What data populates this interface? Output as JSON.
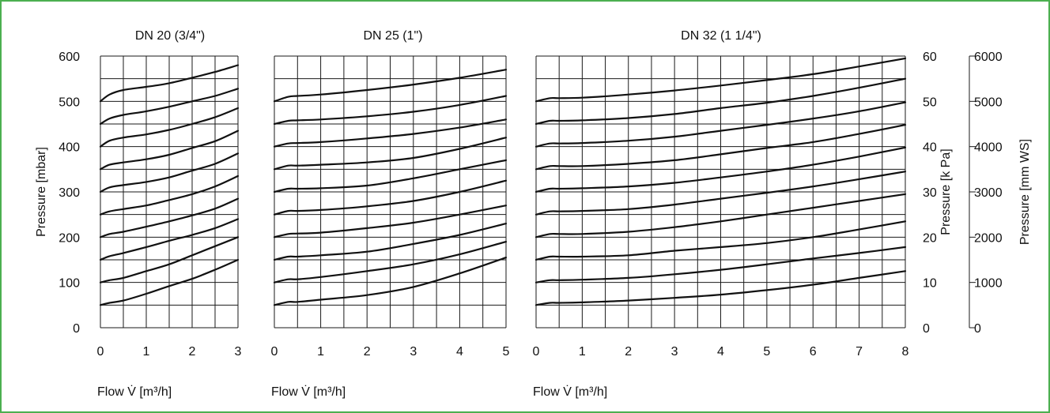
{
  "chart_data": [
    {
      "type": "line",
      "title": "DN 20 (3/4\")",
      "xlabel": "Flow V̇ [m³/h]",
      "ylabel": "Pressure [mbar]",
      "xlim": [
        0,
        3
      ],
      "ylim": [
        0,
        600
      ],
      "x_ticks": [
        "0",
        "1",
        "2",
        "3"
      ],
      "y_ticks": [
        "0",
        "100",
        "200",
        "300",
        "400",
        "500",
        "600"
      ],
      "grid": true,
      "series": [
        {
          "x": [
            0,
            0.2,
            0.5,
            1,
            1.5,
            2,
            2.5,
            3
          ],
          "values": [
            50,
            55,
            60,
            75,
            92,
            108,
            128,
            150
          ]
        },
        {
          "x": [
            0,
            0.2,
            0.5,
            1,
            1.5,
            2,
            2.5,
            3
          ],
          "values": [
            100,
            105,
            110,
            125,
            140,
            160,
            180,
            200
          ]
        },
        {
          "x": [
            0,
            0.2,
            0.5,
            1,
            1.5,
            2,
            2.5,
            3
          ],
          "values": [
            150,
            158,
            165,
            178,
            192,
            205,
            220,
            240
          ]
        },
        {
          "x": [
            0,
            0.2,
            0.5,
            1,
            1.5,
            2,
            2.5,
            3
          ],
          "values": [
            200,
            207,
            212,
            223,
            235,
            248,
            263,
            285
          ]
        },
        {
          "x": [
            0,
            0.2,
            0.5,
            1,
            1.5,
            2,
            2.5,
            3
          ],
          "values": [
            250,
            257,
            262,
            270,
            282,
            295,
            312,
            335
          ]
        },
        {
          "x": [
            0,
            0.2,
            0.5,
            1,
            1.5,
            2,
            2.5,
            3
          ],
          "values": [
            300,
            310,
            315,
            322,
            332,
            347,
            362,
            385
          ]
        },
        {
          "x": [
            0,
            0.2,
            0.5,
            1,
            1.5,
            2,
            2.5,
            3
          ],
          "values": [
            350,
            360,
            365,
            372,
            382,
            397,
            412,
            435
          ]
        },
        {
          "x": [
            0,
            0.2,
            0.5,
            1,
            1.5,
            2,
            2.5,
            3
          ],
          "values": [
            400,
            413,
            420,
            427,
            437,
            450,
            465,
            485
          ]
        },
        {
          "x": [
            0,
            0.2,
            0.5,
            1,
            1.5,
            2,
            2.5,
            3
          ],
          "values": [
            450,
            462,
            470,
            478,
            488,
            500,
            512,
            528
          ]
        },
        {
          "x": [
            0,
            0.2,
            0.5,
            1,
            1.5,
            2,
            2.5,
            3
          ],
          "values": [
            500,
            515,
            525,
            532,
            540,
            552,
            565,
            580
          ]
        }
      ]
    },
    {
      "type": "line",
      "title": "DN 25 (1\")",
      "xlabel": "Flow V̇ [m³/h]",
      "xlim": [
        0,
        5
      ],
      "ylim": [
        0,
        600
      ],
      "x_ticks": [
        "0",
        "1",
        "2",
        "3",
        "4",
        "5"
      ],
      "grid": true,
      "series": [
        {
          "x": [
            0,
            0.3,
            0.5,
            1,
            2,
            3,
            4,
            5
          ],
          "values": [
            50,
            57,
            57,
            62,
            72,
            90,
            120,
            155
          ]
        },
        {
          "x": [
            0,
            0.3,
            0.5,
            1,
            2,
            3,
            4,
            5
          ],
          "values": [
            100,
            107,
            107,
            112,
            125,
            140,
            162,
            190
          ]
        },
        {
          "x": [
            0,
            0.3,
            0.5,
            1,
            2,
            3,
            4,
            5
          ],
          "values": [
            150,
            157,
            157,
            160,
            168,
            185,
            205,
            230
          ]
        },
        {
          "x": [
            0,
            0.3,
            0.5,
            1,
            2,
            3,
            4,
            5
          ],
          "values": [
            200,
            207,
            208,
            210,
            220,
            232,
            250,
            270
          ]
        },
        {
          "x": [
            0,
            0.3,
            0.5,
            1,
            2,
            3,
            4,
            5
          ],
          "values": [
            250,
            258,
            258,
            260,
            268,
            280,
            300,
            325
          ]
        },
        {
          "x": [
            0,
            0.3,
            0.5,
            1,
            2,
            3,
            4,
            5
          ],
          "values": [
            300,
            307,
            307,
            308,
            314,
            330,
            350,
            370
          ]
        },
        {
          "x": [
            0,
            0.3,
            0.5,
            1,
            2,
            3,
            4,
            5
          ],
          "values": [
            350,
            358,
            358,
            360,
            365,
            375,
            395,
            420
          ]
        },
        {
          "x": [
            0,
            0.3,
            0.5,
            1,
            2,
            3,
            4,
            5
          ],
          "values": [
            400,
            407,
            408,
            410,
            418,
            428,
            442,
            460
          ]
        },
        {
          "x": [
            0,
            0.3,
            0.5,
            1,
            2,
            3,
            4,
            5
          ],
          "values": [
            450,
            457,
            458,
            460,
            467,
            477,
            492,
            512
          ]
        },
        {
          "x": [
            0,
            0.3,
            0.5,
            1,
            2,
            3,
            4,
            5
          ],
          "values": [
            500,
            510,
            512,
            515,
            525,
            537,
            552,
            570
          ]
        }
      ]
    },
    {
      "type": "line",
      "title": "DN 32 (1 1/4\")",
      "xlabel": "Flow V̇ [m³/h]",
      "ylabel_right_1": "Pressure [k Pa]",
      "ylabel_right_2": "Pressure [mm WS]",
      "xlim": [
        0,
        8
      ],
      "ylim": [
        0,
        600
      ],
      "x_ticks": [
        "0",
        "1",
        "2",
        "3",
        "4",
        "5",
        "6",
        "7",
        "8"
      ],
      "y_ticks_kpa": [
        "0",
        "10",
        "20",
        "30",
        "40",
        "50",
        "60"
      ],
      "y_ticks_mmws": [
        "0",
        "1000",
        "2000",
        "3000",
        "4000",
        "5000",
        "6000"
      ],
      "grid": true,
      "series": [
        {
          "x": [
            0,
            0.3,
            0.5,
            1,
            2,
            3,
            4,
            5,
            6,
            7,
            8
          ],
          "values": [
            50,
            55,
            55,
            56,
            60,
            66,
            73,
            83,
            95,
            110,
            125
          ]
        },
        {
          "x": [
            0,
            0.3,
            0.5,
            1,
            2,
            3,
            4,
            5,
            6,
            7,
            8
          ],
          "values": [
            100,
            105,
            105,
            106,
            110,
            118,
            128,
            140,
            153,
            165,
            178
          ]
        },
        {
          "x": [
            0,
            0.3,
            0.5,
            1,
            2,
            3,
            4,
            5,
            6,
            7,
            8
          ],
          "values": [
            150,
            157,
            157,
            157,
            160,
            170,
            178,
            187,
            200,
            217,
            235
          ]
        },
        {
          "x": [
            0,
            0.3,
            0.5,
            1,
            2,
            3,
            4,
            5,
            6,
            7,
            8
          ],
          "values": [
            200,
            207,
            207,
            207,
            212,
            222,
            235,
            250,
            265,
            280,
            295
          ]
        },
        {
          "x": [
            0,
            0.3,
            0.5,
            1,
            2,
            3,
            4,
            5,
            6,
            7,
            8
          ],
          "values": [
            250,
            257,
            257,
            258,
            262,
            272,
            285,
            298,
            312,
            328,
            345
          ]
        },
        {
          "x": [
            0,
            0.3,
            0.5,
            1,
            2,
            3,
            4,
            5,
            6,
            7,
            8
          ],
          "values": [
            300,
            307,
            307,
            308,
            312,
            320,
            332,
            345,
            360,
            378,
            398
          ]
        },
        {
          "x": [
            0,
            0.3,
            0.5,
            1,
            2,
            3,
            4,
            5,
            6,
            7,
            8
          ],
          "values": [
            350,
            357,
            357,
            357,
            362,
            370,
            383,
            397,
            410,
            428,
            448
          ]
        },
        {
          "x": [
            0,
            0.3,
            0.5,
            1,
            2,
            3,
            4,
            5,
            6,
            7,
            8
          ],
          "values": [
            400,
            407,
            407,
            408,
            413,
            422,
            435,
            448,
            462,
            478,
            498
          ]
        },
        {
          "x": [
            0,
            0.3,
            0.5,
            1,
            2,
            3,
            4,
            5,
            6,
            7,
            8
          ],
          "values": [
            450,
            457,
            457,
            458,
            463,
            472,
            485,
            497,
            512,
            530,
            550
          ]
        },
        {
          "x": [
            0,
            0.3,
            0.5,
            1,
            2,
            3,
            4,
            5,
            6,
            7,
            8
          ],
          "values": [
            500,
            507,
            507,
            508,
            515,
            524,
            535,
            547,
            560,
            577,
            595
          ]
        }
      ]
    }
  ],
  "colors": {
    "frame_border": "#4caf50",
    "line": "#111111",
    "grid": "#1a1a1a",
    "background": "#ffffff"
  }
}
